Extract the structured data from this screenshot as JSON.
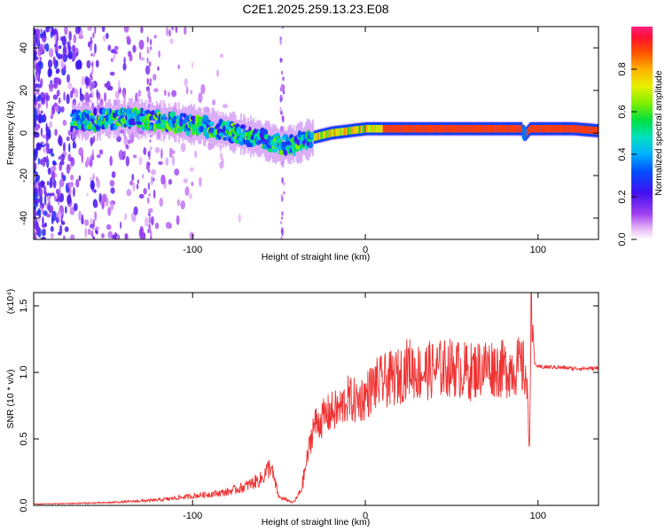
{
  "figure_title": "C2E1.2025.259.13.23.E08",
  "colors": {
    "snr_line": "#ee3333",
    "axis": "#000000",
    "background": "#ffffff"
  },
  "chart_data": [
    {
      "type": "heatmap",
      "title": "",
      "xlabel": "Height of straight line (km)",
      "ylabel": "Frequency (Hz)",
      "xlim": [
        -192,
        135
      ],
      "ylim": [
        -50,
        50
      ],
      "xticks": [
        -100,
        0,
        100
      ],
      "yticks": [
        -40,
        -20,
        0,
        20,
        40
      ],
      "colorbar": {
        "label": "Normalized spectral amplitude",
        "range": [
          0,
          1
        ],
        "ticks": [
          0.0,
          0.2,
          0.4,
          0.6,
          0.8
        ]
      },
      "ridge": {
        "description": "dominant spectral ridge frequency (Hz) vs height (km)",
        "x": [
          -160,
          -140,
          -120,
          -100,
          -80,
          -60,
          -50,
          -40,
          -30,
          -20,
          -10,
          0,
          50,
          90,
          92,
          95,
          120,
          135
        ],
        "freq_hz": [
          6,
          7,
          6,
          4,
          1,
          -3,
          -6,
          -5,
          -2,
          0,
          1,
          2,
          2,
          2,
          -1,
          2,
          2,
          1
        ]
      }
    },
    {
      "type": "line",
      "title": "",
      "xlabel": "Height of straight line (km)",
      "ylabel": "SNR (10 * v/v)",
      "y_scale_label": "(x10⁴)",
      "xlim": [
        -192,
        135
      ],
      "ylim": [
        0,
        1.6
      ],
      "xticks": [
        -100,
        0,
        100
      ],
      "yticks": [
        0.0,
        0.5,
        1.0,
        1.5
      ],
      "series": [
        {
          "name": "SNR",
          "x": [
            -190,
            -150,
            -120,
            -100,
            -80,
            -70,
            -60,
            -55,
            -50,
            -45,
            -42,
            -40,
            -37,
            -33,
            -30,
            -25,
            -20,
            -15,
            -10,
            -5,
            0,
            5,
            10,
            20,
            25,
            30,
            40,
            50,
            60,
            70,
            80,
            90,
            93,
            95,
            96,
            98,
            100,
            110,
            120,
            135
          ],
          "values": [
            0.01,
            0.02,
            0.04,
            0.07,
            0.1,
            0.14,
            0.2,
            0.3,
            0.06,
            0.04,
            0.02,
            0.05,
            0.12,
            0.4,
            0.6,
            0.65,
            0.7,
            0.72,
            0.8,
            0.78,
            0.82,
            0.9,
            0.93,
            0.97,
            1.05,
            1.0,
            1.02,
            1.04,
            1.0,
            1.05,
            1.02,
            1.05,
            1.0,
            0.45,
            1.6,
            1.07,
            1.04,
            1.04,
            1.03,
            1.03
          ]
        }
      ]
    }
  ]
}
